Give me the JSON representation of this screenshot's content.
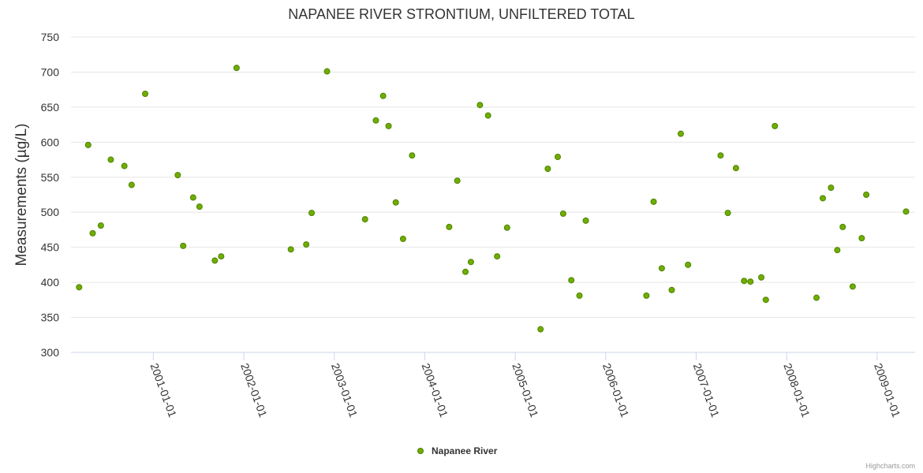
{
  "chart_data": {
    "type": "scatter",
    "title": "NAPANEE RIVER STRONTIUM, UNFILTERED TOTAL",
    "xlabel": "",
    "ylabel": "Measurements (µg/L)",
    "ylim": [
      300,
      750
    ],
    "yticks": [
      300,
      350,
      400,
      450,
      500,
      550,
      600,
      650,
      700,
      750
    ],
    "xlim_decimal_year": [
      2000.09,
      2009.42
    ],
    "xticks": [
      "2001-01-01",
      "2002-01-01",
      "2003-01-01",
      "2004-01-01",
      "2005-01-01",
      "2006-01-01",
      "2007-01-01",
      "2008-01-01",
      "2009-01-01"
    ],
    "grid": true,
    "legend_position": "bottom-center",
    "series": [
      {
        "name": "Napanee River",
        "color": "#6fae00",
        "x_decimal_year": [
          2000.18,
          2000.28,
          2000.33,
          2000.42,
          2000.53,
          2000.68,
          2000.76,
          2000.91,
          2001.27,
          2001.33,
          2001.44,
          2001.51,
          2001.68,
          2001.75,
          2001.92,
          2002.52,
          2002.69,
          2002.75,
          2002.92,
          2003.34,
          2003.46,
          2003.54,
          2003.6,
          2003.68,
          2003.76,
          2003.86,
          2004.27,
          2004.36,
          2004.45,
          2004.51,
          2004.61,
          2004.7,
          2004.8,
          2004.91,
          2005.28,
          2005.36,
          2005.47,
          2005.53,
          2005.62,
          2005.71,
          2005.78,
          2006.45,
          2006.53,
          2006.62,
          2006.73,
          2006.83,
          2006.91,
          2007.27,
          2007.35,
          2007.44,
          2007.53,
          2007.6,
          2007.72,
          2007.77,
          2007.87,
          2008.33,
          2008.4,
          2008.49,
          2008.56,
          2008.62,
          2008.73,
          2008.83,
          2008.88,
          2009.32
        ],
        "y": [
          393,
          596,
          470,
          481,
          575,
          566,
          539,
          669,
          553,
          452,
          521,
          508,
          431,
          437,
          706,
          447,
          454,
          499,
          701,
          490,
          631,
          666,
          623,
          514,
          462,
          581,
          479,
          545,
          415,
          429,
          653,
          638,
          437,
          478,
          333,
          562,
          579,
          498,
          403,
          381,
          488,
          381,
          515,
          420,
          389,
          612,
          425,
          581,
          499,
          563,
          402,
          401,
          407,
          375,
          623,
          378,
          520,
          535,
          446,
          479,
          394,
          463,
          525,
          501
        ]
      }
    ],
    "credits": "Highcharts.com"
  }
}
